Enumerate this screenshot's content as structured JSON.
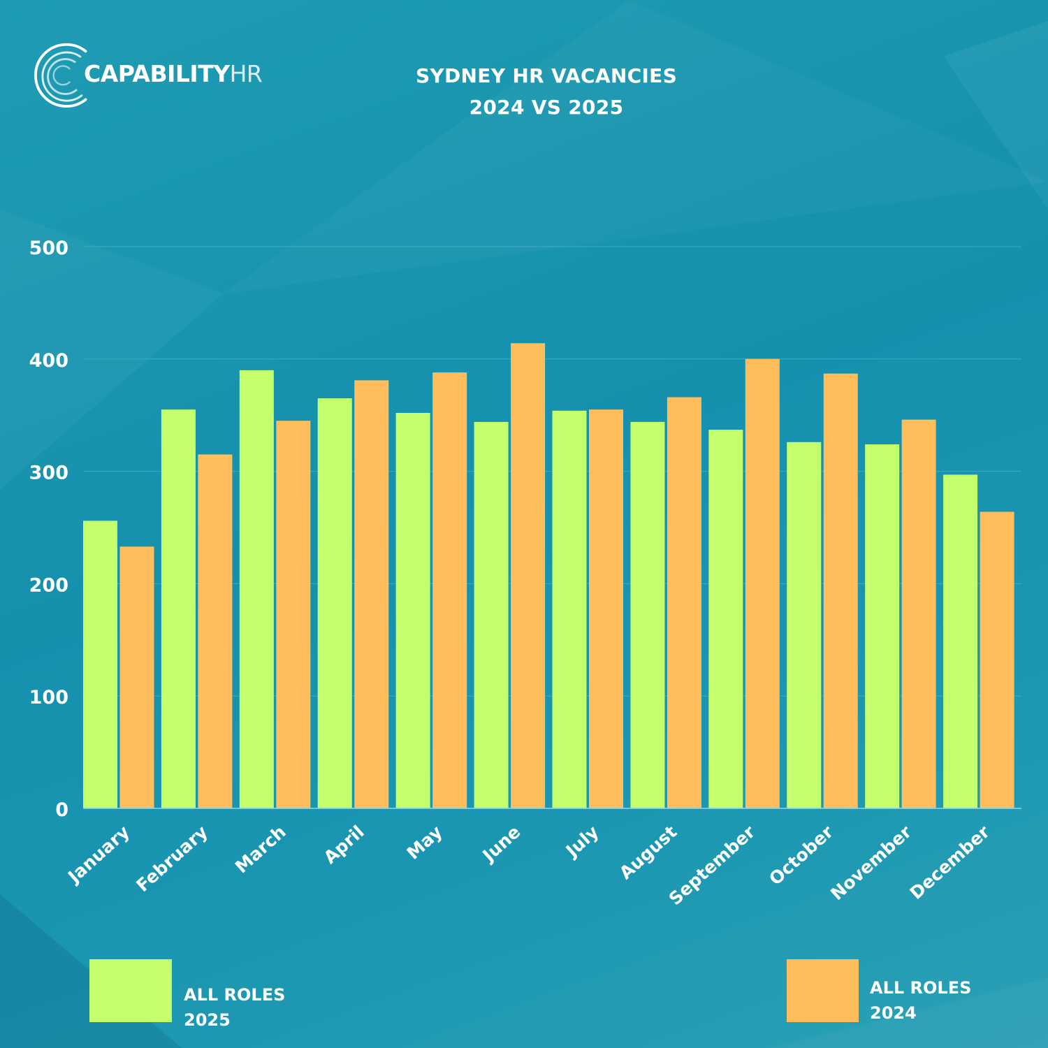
{
  "header": {
    "brand_strong": "CAPABILITY",
    "brand_light": "HR",
    "title_line1": "SYDNEY HR VACANCIES",
    "title_line2": "2024 VS 2025"
  },
  "legend": {
    "item1_line1": "ALL ROLES",
    "item1_line2": "2025",
    "item2_line1": "ALL ROLES",
    "item2_line2": "2024"
  },
  "colors": {
    "series_2025": "#c4ff6e",
    "series_2024": "#ffbd5c",
    "gridline": "#5ec0d0"
  },
  "chart_data": {
    "type": "bar",
    "title": "SYDNEY HR VACANCIES 2024 VS 2025",
    "xlabel": "",
    "ylabel": "",
    "ylim": [
      0,
      500
    ],
    "yticks": [
      0,
      100,
      200,
      300,
      400,
      500
    ],
    "grid": true,
    "legend_position": "bottom",
    "categories": [
      "January",
      "February",
      "March",
      "April",
      "May",
      "June",
      "July",
      "August",
      "September",
      "October",
      "November",
      "December"
    ],
    "series": [
      {
        "name": "ALL ROLES 2025",
        "color": "#c4ff6e",
        "values": [
          256,
          355,
          390,
          365,
          352,
          344,
          354,
          344,
          337,
          326,
          324,
          297
        ]
      },
      {
        "name": "ALL ROLES 2024",
        "color": "#ffbd5c",
        "values": [
          233,
          315,
          345,
          381,
          388,
          414,
          355,
          366,
          400,
          387,
          346,
          264
        ]
      }
    ]
  }
}
